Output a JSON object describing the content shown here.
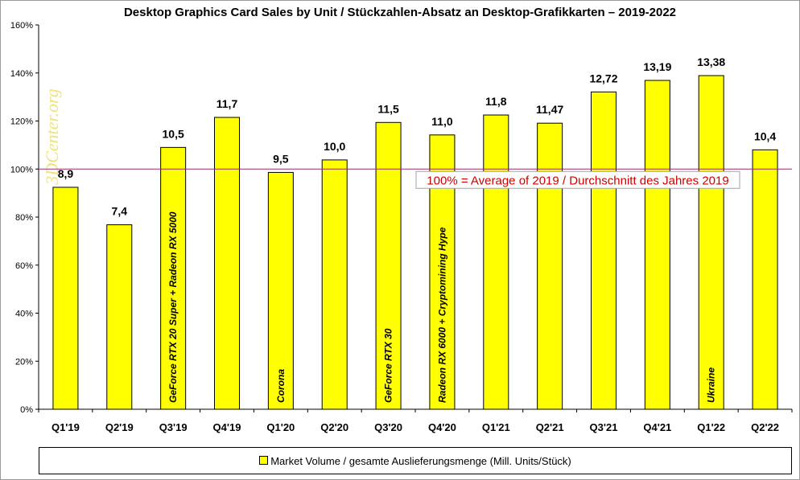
{
  "chart_data": {
    "type": "bar",
    "title": "Desktop Graphics Card Sales by Unit  / Stückzahlen-Absatz an Desktop-Grafikkarten – 2019-2022",
    "categories": [
      "Q1'19",
      "Q2'19",
      "Q3'19",
      "Q4'19",
      "Q1'20",
      "Q2'20",
      "Q3'20",
      "Q4'20",
      "Q1'21",
      "Q2'21",
      "Q3'21",
      "Q4'21",
      "Q1'22",
      "Q2'22"
    ],
    "values": [
      92.4,
      76.8,
      109.0,
      121.5,
      98.6,
      103.8,
      119.4,
      114.2,
      122.5,
      119.1,
      132.1,
      136.9,
      138.9,
      108.0
    ],
    "data_labels": [
      "8,9",
      "7,4",
      "10,5",
      "11,7",
      "9,5",
      "10,0",
      "11,5",
      "11,0",
      "11,8",
      "11,47",
      "12,72",
      "13,19",
      "13,38",
      "10,4"
    ],
    "bar_annotations": [
      {
        "index": 2,
        "text": "GeForce RTX 20 Super +  Radeon RX 5000"
      },
      {
        "index": 4,
        "text": "Corona"
      },
      {
        "index": 6,
        "text": "GeForce RTX 30"
      },
      {
        "index": 7,
        "text": "Radeon RX 6000 + Cryptomining Hype"
      },
      {
        "index": 12,
        "text": "Ukraine"
      }
    ],
    "ylim": [
      0,
      160
    ],
    "y_ticks": [
      "0%",
      "20%",
      "40%",
      "60%",
      "80%",
      "100%",
      "120%",
      "140%",
      "160%"
    ],
    "reference_line": {
      "value": 100,
      "label": "100% = Average of 2019 / Durchschnitt des Jahres 2019",
      "color": "#9b2d6e"
    },
    "watermark": "3DCenter.org",
    "legend": {
      "label": "Market Volume / gesamte Auslieferungsmenge (Mill. Units/Stück)",
      "placement": "bottom"
    },
    "grid": false,
    "bar_color": "#ffff00",
    "label_color": "#cc0000",
    "watermark_color": "#f2e27a"
  }
}
